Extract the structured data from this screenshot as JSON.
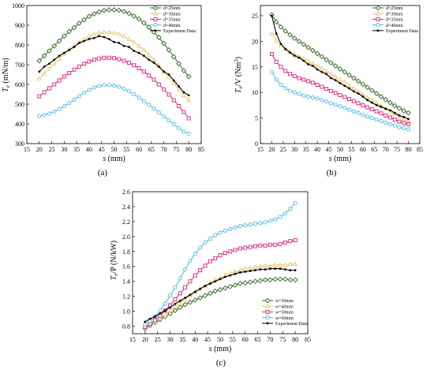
{
  "figure": {
    "panel_labels": [
      "(a)",
      "(b)",
      "(c)"
    ]
  },
  "chart_data": [
    {
      "type": "line",
      "panel": "(a)",
      "xlabel": "s (mm)",
      "ylabel": "Te (mN/m)",
      "ylabel_main": "T",
      "ylabel_sub": "e",
      "ylabel_unit": " (mN/m)",
      "xlim": [
        15,
        85
      ],
      "ylim": [
        300,
        1000
      ],
      "xticks": [
        15,
        20,
        25,
        30,
        35,
        40,
        45,
        50,
        55,
        60,
        65,
        70,
        75,
        80,
        85
      ],
      "yticks": [
        300,
        400,
        500,
        600,
        700,
        800,
        900,
        1000
      ],
      "legend_position": "top-right",
      "x": [
        20,
        22,
        24,
        26,
        28,
        30,
        32,
        34,
        36,
        38,
        40,
        42,
        44,
        46,
        48,
        50,
        52,
        54,
        56,
        58,
        60,
        62,
        64,
        66,
        68,
        70,
        72,
        74,
        76,
        78,
        80
      ],
      "series": [
        {
          "name": "d=25mm",
          "color": "#2e6b1f",
          "marker": "diamond",
          "values": [
            720,
            745,
            770,
            795,
            820,
            845,
            868,
            888,
            910,
            928,
            945,
            958,
            968,
            975,
            978,
            978,
            976,
            970,
            960,
            947,
            932,
            912,
            890,
            865,
            838,
            808,
            775,
            740,
            705,
            670,
            640
          ]
        },
        {
          "name": "d=30mm",
          "color": "#e8c66a",
          "marker": "triangle",
          "values": [
            630,
            655,
            680,
            705,
            730,
            755,
            775,
            795,
            815,
            830,
            845,
            855,
            862,
            865,
            865,
            862,
            855,
            845,
            830,
            815,
            795,
            775,
            750,
            725,
            695,
            665,
            635,
            605,
            575,
            545,
            520
          ]
        },
        {
          "name": "d=35mm",
          "color": "#d6237a",
          "marker": "square",
          "values": [
            540,
            560,
            580,
            600,
            620,
            640,
            658,
            675,
            690,
            705,
            716,
            725,
            731,
            735,
            735,
            733,
            728,
            720,
            710,
            697,
            682,
            665,
            645,
            624,
            600,
            575,
            548,
            520,
            490,
            460,
            428
          ]
        },
        {
          "name": "d=40mm",
          "color": "#4bb8e8",
          "marker": "circle",
          "values": [
            440,
            445,
            452,
            462,
            475,
            490,
            505,
            522,
            540,
            557,
            572,
            584,
            592,
            597,
            597,
            594,
            588,
            578,
            565,
            550,
            533,
            515,
            497,
            478,
            458,
            438,
            418,
            398,
            378,
            360,
            350
          ]
        },
        {
          "name": "Experiment Data",
          "color": "#000000",
          "marker": "dot",
          "values": [
            665,
            690,
            705,
            725,
            745,
            760,
            775,
            790,
            810,
            820,
            830,
            835,
            845,
            840,
            830,
            815,
            810,
            795,
            790,
            770,
            760,
            745,
            725,
            710,
            690,
            665,
            650,
            620,
            590,
            560,
            545
          ]
        }
      ]
    },
    {
      "type": "line",
      "panel": "(b)",
      "xlabel": "s (mm)",
      "ylabel": "Te/V (Nm3)",
      "ylabel_main": "T",
      "ylabel_sub": "e",
      "ylabel_mid": "/V (Nm",
      "ylabel_sup": "3",
      "ylabel_end": ")",
      "xlim": [
        15,
        85
      ],
      "ylim": [
        0,
        27
      ],
      "xticks": [
        15,
        20,
        25,
        30,
        35,
        40,
        45,
        50,
        55,
        60,
        65,
        70,
        75,
        80,
        85
      ],
      "yticks": [
        0,
        5,
        10,
        15,
        20,
        25
      ],
      "legend_position": "top-right",
      "x": [
        20,
        22,
        24,
        26,
        28,
        30,
        32,
        34,
        36,
        38,
        40,
        42,
        44,
        46,
        48,
        50,
        52,
        54,
        56,
        58,
        60,
        62,
        64,
        66,
        68,
        70,
        72,
        74,
        76,
        78,
        80
      ],
      "series": [
        {
          "name": "d=25mm",
          "color": "#2e6b1f",
          "marker": "diamond",
          "values": [
            25.2,
            23.8,
            22.8,
            22.0,
            21.3,
            20.6,
            20.0,
            19.4,
            18.8,
            18.2,
            17.6,
            17.0,
            16.4,
            15.8,
            15.2,
            14.6,
            14.0,
            13.4,
            12.8,
            12.2,
            11.6,
            11.0,
            10.4,
            9.8,
            9.2,
            8.6,
            8.0,
            7.4,
            6.9,
            6.4,
            6.0
          ]
        },
        {
          "name": "d=30mm",
          "color": "#e8c66a",
          "marker": "triangle",
          "values": [
            21.5,
            20.2,
            19.2,
            18.5,
            18.0,
            17.5,
            17.0,
            16.6,
            16.1,
            15.6,
            15.2,
            14.7,
            14.2,
            13.6,
            13.1,
            12.5,
            12.0,
            11.4,
            10.8,
            10.2,
            9.6,
            9.0,
            8.5,
            8.0,
            7.4,
            6.9,
            6.3,
            5.8,
            5.3,
            4.8,
            4.5
          ]
        },
        {
          "name": "d=35mm",
          "color": "#d6237a",
          "marker": "square",
          "values": [
            17.5,
            16.0,
            15.0,
            14.2,
            13.6,
            13.2,
            12.8,
            12.5,
            12.2,
            11.9,
            11.5,
            11.1,
            10.7,
            10.3,
            9.9,
            9.5,
            9.1,
            8.7,
            8.3,
            7.9,
            7.5,
            7.1,
            6.7,
            6.3,
            5.9,
            5.5,
            5.1,
            4.7,
            4.3,
            4.0,
            3.8
          ]
        },
        {
          "name": "d=40mm",
          "color": "#4bb8e8",
          "marker": "circle",
          "values": [
            14.0,
            12.5,
            11.5,
            10.8,
            10.3,
            10.0,
            9.7,
            9.4,
            9.2,
            9.0,
            8.8,
            8.5,
            8.2,
            7.9,
            7.6,
            7.3,
            7.0,
            6.6,
            6.3,
            6.0,
            5.6,
            5.3,
            5.0,
            4.7,
            4.4,
            4.1,
            3.8,
            3.5,
            3.2,
            3.0,
            2.8
          ]
        },
        {
          "name": "Experiment Data",
          "color": "#000000",
          "marker": "dot",
          "values": [
            25.0,
            21.5,
            19.5,
            18.5,
            17.8,
            17.2,
            16.8,
            16.2,
            15.5,
            15.2,
            14.5,
            14.0,
            13.6,
            12.8,
            12.4,
            11.8,
            11.3,
            10.8,
            10.2,
            9.8,
            9.2,
            8.5,
            8.0,
            7.5,
            7.2,
            6.8,
            6.5,
            6.0,
            5.5,
            5.2,
            4.8
          ]
        }
      ]
    },
    {
      "type": "line",
      "panel": "(c)",
      "xlabel": "s (mm)",
      "ylabel": "Te/P (N/kW)",
      "ylabel_main": "T",
      "ylabel_sub": "e",
      "ylabel_unit": "/P (N/kW)",
      "xlim": [
        15,
        85
      ],
      "ylim": [
        0.7,
        2.6
      ],
      "xticks": [
        15,
        20,
        25,
        30,
        35,
        40,
        45,
        50,
        55,
        60,
        65,
        70,
        75,
        80,
        85
      ],
      "yticks": [
        0.8,
        1.0,
        1.2,
        1.4,
        1.6,
        1.8,
        2.0,
        2.2,
        2.4,
        2.6
      ],
      "legend_position": "bottom-right",
      "x": [
        20,
        22,
        24,
        26,
        28,
        30,
        32,
        34,
        36,
        38,
        40,
        42,
        44,
        46,
        48,
        50,
        52,
        54,
        56,
        58,
        60,
        62,
        64,
        66,
        68,
        70,
        72,
        74,
        76,
        78,
        80
      ],
      "series": [
        {
          "name": "w=30mm",
          "color": "#2e6b1f",
          "marker": "diamond",
          "values": [
            0.77,
            0.81,
            0.85,
            0.89,
            0.93,
            0.97,
            1.01,
            1.05,
            1.09,
            1.12,
            1.15,
            1.18,
            1.21,
            1.24,
            1.27,
            1.29,
            1.31,
            1.33,
            1.35,
            1.37,
            1.38,
            1.39,
            1.4,
            1.41,
            1.42,
            1.42,
            1.43,
            1.43,
            1.43,
            1.42,
            1.42
          ]
        },
        {
          "name": "w=40mm",
          "color": "#e8c66a",
          "marker": "triangle",
          "values": [
            0.78,
            0.82,
            0.86,
            0.91,
            0.96,
            1.01,
            1.06,
            1.11,
            1.16,
            1.21,
            1.26,
            1.3,
            1.34,
            1.38,
            1.42,
            1.45,
            1.48,
            1.51,
            1.53,
            1.55,
            1.57,
            1.58,
            1.59,
            1.6,
            1.61,
            1.61,
            1.62,
            1.62,
            1.62,
            1.63,
            1.63
          ]
        },
        {
          "name": "w=50mm",
          "color": "#d6237a",
          "marker": "square",
          "values": [
            0.79,
            0.83,
            0.88,
            0.94,
            1.01,
            1.08,
            1.16,
            1.24,
            1.32,
            1.4,
            1.48,
            1.55,
            1.61,
            1.67,
            1.71,
            1.75,
            1.78,
            1.8,
            1.82,
            1.84,
            1.85,
            1.86,
            1.87,
            1.88,
            1.88,
            1.89,
            1.89,
            1.9,
            1.92,
            1.94,
            1.95
          ]
        },
        {
          "name": "w=60mm",
          "color": "#4bb8e8",
          "marker": "circle",
          "values": [
            0.82,
            0.87,
            0.93,
            1.01,
            1.1,
            1.21,
            1.32,
            1.44,
            1.56,
            1.67,
            1.77,
            1.85,
            1.92,
            1.97,
            2.02,
            2.05,
            2.08,
            2.1,
            2.12,
            2.14,
            2.15,
            2.16,
            2.17,
            2.18,
            2.19,
            2.21,
            2.23,
            2.26,
            2.31,
            2.37,
            2.45
          ]
        },
        {
          "name": "Experiment Data",
          "color": "#000000",
          "marker": "dot",
          "values": [
            0.86,
            0.9,
            0.93,
            0.97,
            1.01,
            1.05,
            1.1,
            1.14,
            1.18,
            1.22,
            1.26,
            1.3,
            1.34,
            1.37,
            1.4,
            1.43,
            1.46,
            1.48,
            1.5,
            1.52,
            1.53,
            1.54,
            1.55,
            1.56,
            1.56,
            1.57,
            1.57,
            1.57,
            1.56,
            1.55,
            1.55
          ]
        }
      ]
    }
  ]
}
